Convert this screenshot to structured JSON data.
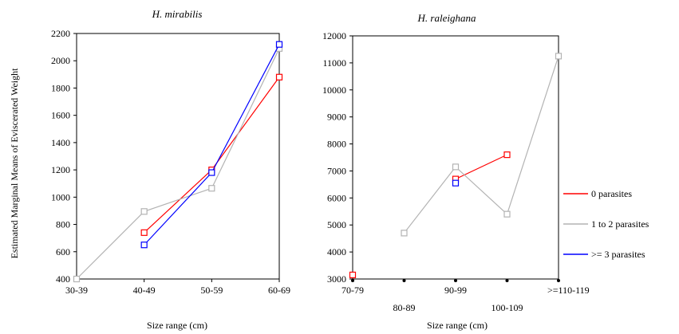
{
  "shared_ylabel": "Estimated Marginal Means of Eviscerated Weight",
  "legend": [
    {
      "label": "0 parasites",
      "color": "#ff0000"
    },
    {
      "label": "1 to 2 parasites",
      "color": "#b3b3b3"
    },
    {
      "label": ">= 3 parasites",
      "color": "#0000ff"
    }
  ],
  "chart_data": [
    {
      "type": "line",
      "title": "H. mirabilis",
      "xlabel": "Size range (cm)",
      "categories": [
        "30-39",
        "40-49",
        "50-59",
        "60-69"
      ],
      "yticks": [
        "400",
        "600",
        "800",
        "1000",
        "1200",
        "1400",
        "1600",
        "1800",
        "2000",
        "2200"
      ],
      "ylim": [
        400,
        2200
      ],
      "series": [
        {
          "name": "0 parasites",
          "color": "#ff0000",
          "markers": true,
          "values": [
            null,
            740,
            1200,
            1880
          ]
        },
        {
          "name": "1 to 2 parasites",
          "color": "#b3b3b3",
          "markers": true,
          "values": [
            400,
            895,
            1065,
            2090
          ]
        },
        {
          "name": ">= 3 parasites",
          "color": "#0000ff",
          "markers": true,
          "values": [
            null,
            650,
            1180,
            2120
          ]
        }
      ]
    },
    {
      "type": "line",
      "title": "H. raleighana",
      "xlabel": "Size range (cm)",
      "categories": [
        "70-79",
        "80-89",
        "90-99",
        "100-109",
        ">=110-119"
      ],
      "yticks": [
        "3000",
        "4000",
        "5000",
        "6000",
        "7000",
        "8000",
        "9000",
        "10000",
        "11000",
        "12000"
      ],
      "ylim": [
        3000,
        12000
      ],
      "series": [
        {
          "name": "0 parasites",
          "color": "#ff0000",
          "markers": true,
          "values": [
            3150,
            null,
            6700,
            7600,
            null
          ]
        },
        {
          "name": "1 to 2 parasites",
          "color": "#b3b3b3",
          "markers": true,
          "values": [
            null,
            4700,
            7150,
            5400,
            11250
          ]
        },
        {
          "name": ">= 3 parasites",
          "color": "#0000ff",
          "markers": true,
          "values": [
            null,
            null,
            6550,
            null,
            null
          ]
        }
      ]
    }
  ]
}
